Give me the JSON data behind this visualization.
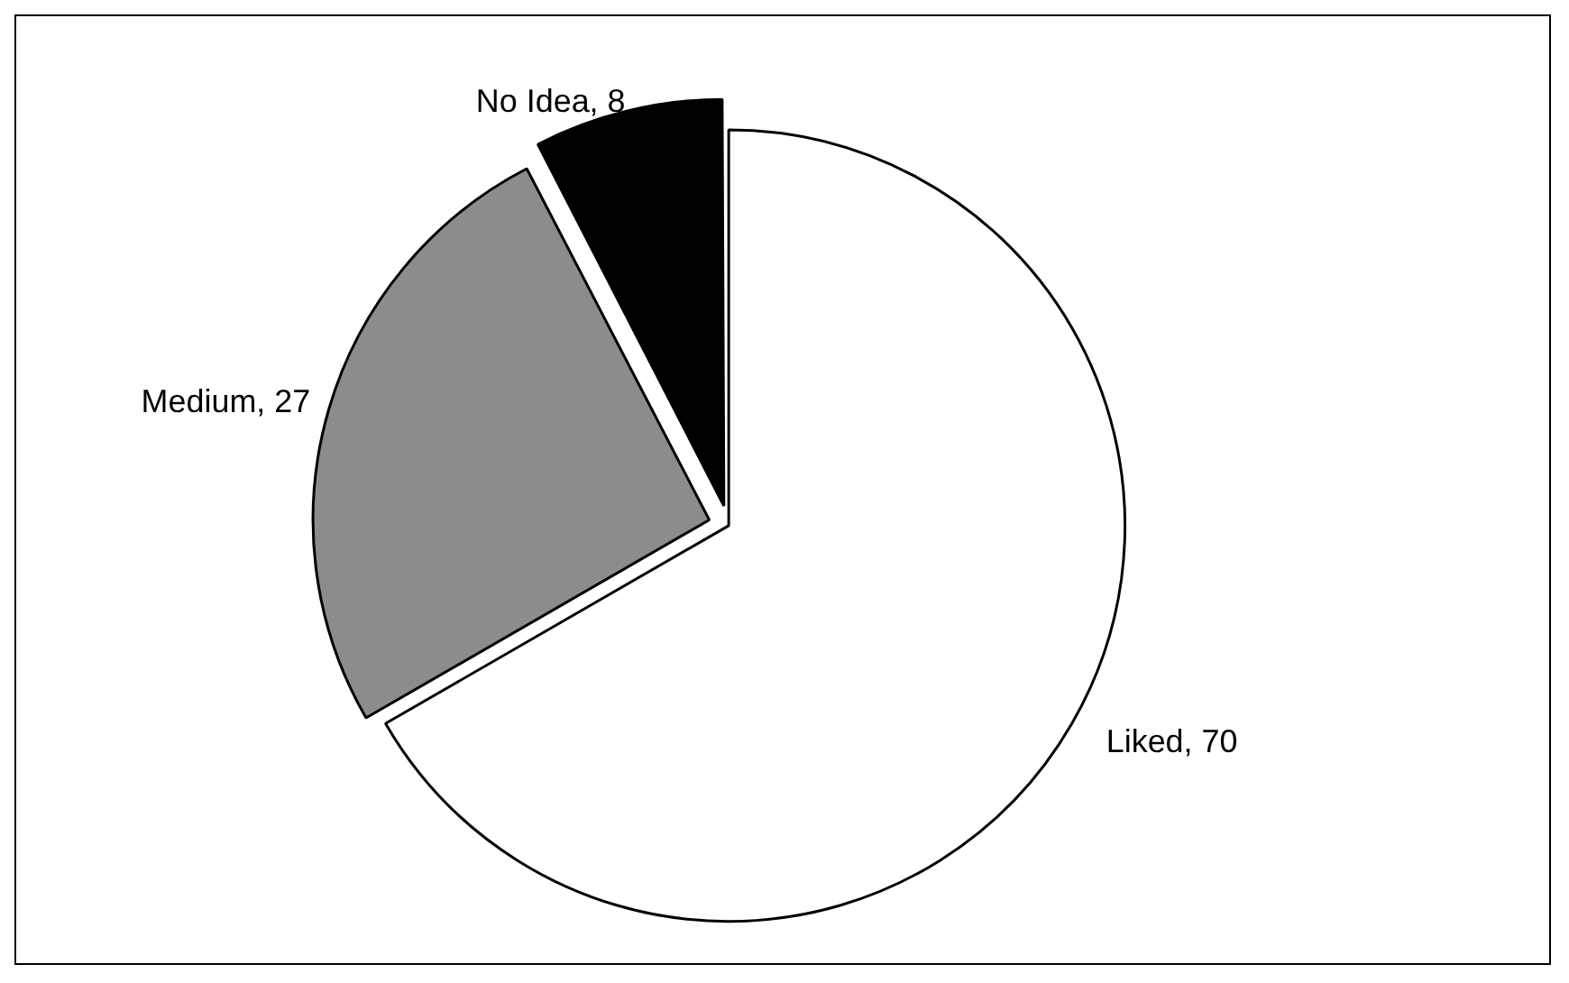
{
  "chart_data": {
    "type": "pie",
    "categories": [
      "Liked, 70",
      "Medium, 27",
      "No Idea, 8"
    ],
    "values": [
      70,
      27,
      8
    ],
    "colors": [
      "#ffffff",
      "#8c8c8c",
      "#000000"
    ],
    "legend": false
  }
}
